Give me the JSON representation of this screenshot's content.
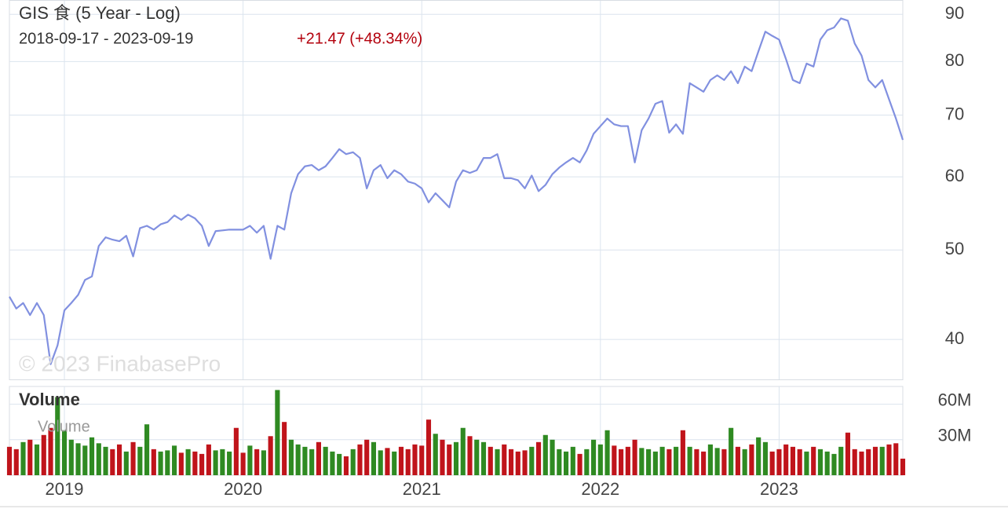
{
  "chart_data": {
    "type": "line",
    "title": "GIS 食 (5 Year - Log)",
    "subtitle": "2018-09-17 - 2023-09-19",
    "change": "+21.47 (+48.34%)",
    "watermark": "© 2023 FinabasePro",
    "log_scale": true,
    "grid": true,
    "color": "#8190e0",
    "categories": [
      null,
      null,
      null,
      null,
      null,
      null,
      null,
      null,
      "2019",
      null,
      null,
      null,
      null,
      null,
      null,
      null,
      null,
      null,
      null,
      null,
      null,
      null,
      null,
      null,
      null,
      null,
      null,
      null,
      null,
      null,
      null,
      null,
      null,
      null,
      "2020",
      null,
      null,
      null,
      null,
      null,
      null,
      null,
      null,
      null,
      null,
      null,
      null,
      null,
      null,
      null,
      null,
      null,
      null,
      null,
      null,
      null,
      null,
      null,
      null,
      null,
      "2021",
      null,
      null,
      null,
      null,
      null,
      null,
      null,
      null,
      null,
      null,
      null,
      null,
      null,
      null,
      null,
      null,
      null,
      null,
      null,
      null,
      null,
      null,
      null,
      null,
      null,
      "2022",
      null,
      null,
      null,
      null,
      null,
      null,
      null,
      null,
      null,
      null,
      null,
      null,
      null,
      null,
      null,
      null,
      null,
      null,
      null,
      null,
      null,
      null,
      null,
      null,
      null,
      "2023",
      null,
      null,
      null,
      null,
      null,
      null,
      null,
      null,
      null,
      null,
      null,
      null,
      null,
      null,
      null,
      null,
      null,
      null
    ],
    "values": [
      44.5,
      43.2,
      43.8,
      42.5,
      43.8,
      42.5,
      37.6,
      39.4,
      43.0,
      43.8,
      44.7,
      46.4,
      46.8,
      50.5,
      51.6,
      51.3,
      51.1,
      51.8,
      49.2,
      52.8,
      53.1,
      52.6,
      53.3,
      53.6,
      54.5,
      53.9,
      54.6,
      54.1,
      53.1,
      50.5,
      52.4,
      52.5,
      52.6,
      52.6,
      52.6,
      53.1,
      52.2,
      53.1,
      48.9,
      53.1,
      52.6,
      57.6,
      60.4,
      61.6,
      61.8,
      61.0,
      61.6,
      62.9,
      64.3,
      63.5,
      63.8,
      62.9,
      58.3,
      61.0,
      61.8,
      59.8,
      61.0,
      60.4,
      59.3,
      59.0,
      58.3,
      56.3,
      57.6,
      56.6,
      55.6,
      59.3,
      61.0,
      60.6,
      61.0,
      62.9,
      62.9,
      63.5,
      59.8,
      59.8,
      59.5,
      58.3,
      60.2,
      57.9,
      58.8,
      60.4,
      61.4,
      62.2,
      62.9,
      62.2,
      64.1,
      66.8,
      68.1,
      69.4,
      68.4,
      68.1,
      68.1,
      62.2,
      67.4,
      69.4,
      72.0,
      72.5,
      67.0,
      68.4,
      66.8,
      75.8,
      75.0,
      74.2,
      76.4,
      77.3,
      76.4,
      78.1,
      75.8,
      79.0,
      78.1,
      82.1,
      86.2,
      85.3,
      84.5,
      80.5,
      76.4,
      75.8,
      79.6,
      79.0,
      84.5,
      86.5,
      87.1,
      89.1,
      88.6,
      83.7,
      81.2,
      76.4,
      75.0,
      76.4,
      72.8,
      69.4,
      65.8
    ],
    "ylim": [
      36.2,
      93.1
    ],
    "yticks": [
      40,
      50,
      60,
      70,
      80,
      90
    ],
    "volume": {
      "type": "bar",
      "title": "Volume",
      "name": "Volume",
      "up_color": "#2f8a22",
      "down_color": "#c0141b",
      "ylim": [
        0,
        75000000
      ],
      "yticks": [
        {
          "value": 30000000,
          "label": "30M"
        },
        {
          "value": 60000000,
          "label": "60M"
        }
      ],
      "values": [
        24000000,
        22000000,
        28000000,
        30000000,
        26000000,
        34000000,
        40000000,
        66000000,
        38000000,
        30000000,
        27000000,
        25000000,
        32000000,
        27000000,
        24000000,
        22000000,
        26000000,
        20000000,
        28000000,
        24000000,
        43000000,
        22000000,
        20000000,
        21000000,
        25000000,
        19000000,
        22000000,
        20000000,
        18000000,
        26000000,
        21000000,
        22000000,
        20000000,
        40000000,
        19000000,
        25000000,
        22000000,
        21000000,
        33000000,
        72000000,
        45000000,
        30000000,
        26000000,
        24000000,
        22000000,
        28000000,
        24000000,
        20000000,
        18000000,
        16000000,
        22000000,
        26000000,
        30000000,
        28000000,
        21000000,
        23000000,
        20000000,
        24000000,
        22000000,
        26000000,
        25000000,
        47000000,
        35000000,
        30000000,
        26000000,
        28000000,
        40000000,
        33000000,
        30000000,
        28000000,
        24000000,
        22000000,
        26000000,
        22000000,
        20000000,
        21000000,
        24000000,
        28000000,
        34000000,
        30000000,
        22000000,
        20000000,
        24000000,
        18000000,
        22000000,
        30000000,
        26000000,
        38000000,
        25000000,
        22000000,
        24000000,
        30000000,
        23000000,
        22000000,
        20000000,
        24000000,
        22000000,
        24000000,
        38000000,
        24000000,
        22000000,
        20000000,
        26000000,
        23000000,
        22000000,
        40000000,
        24000000,
        22000000,
        26000000,
        32000000,
        28000000,
        20000000,
        22000000,
        26000000,
        24000000,
        22000000,
        20000000,
        24000000,
        22000000,
        20000000,
        18000000,
        24000000,
        36000000,
        22000000,
        20000000,
        22000000,
        24000000,
        24000000,
        26000000,
        27000000,
        14000000
      ]
    }
  }
}
